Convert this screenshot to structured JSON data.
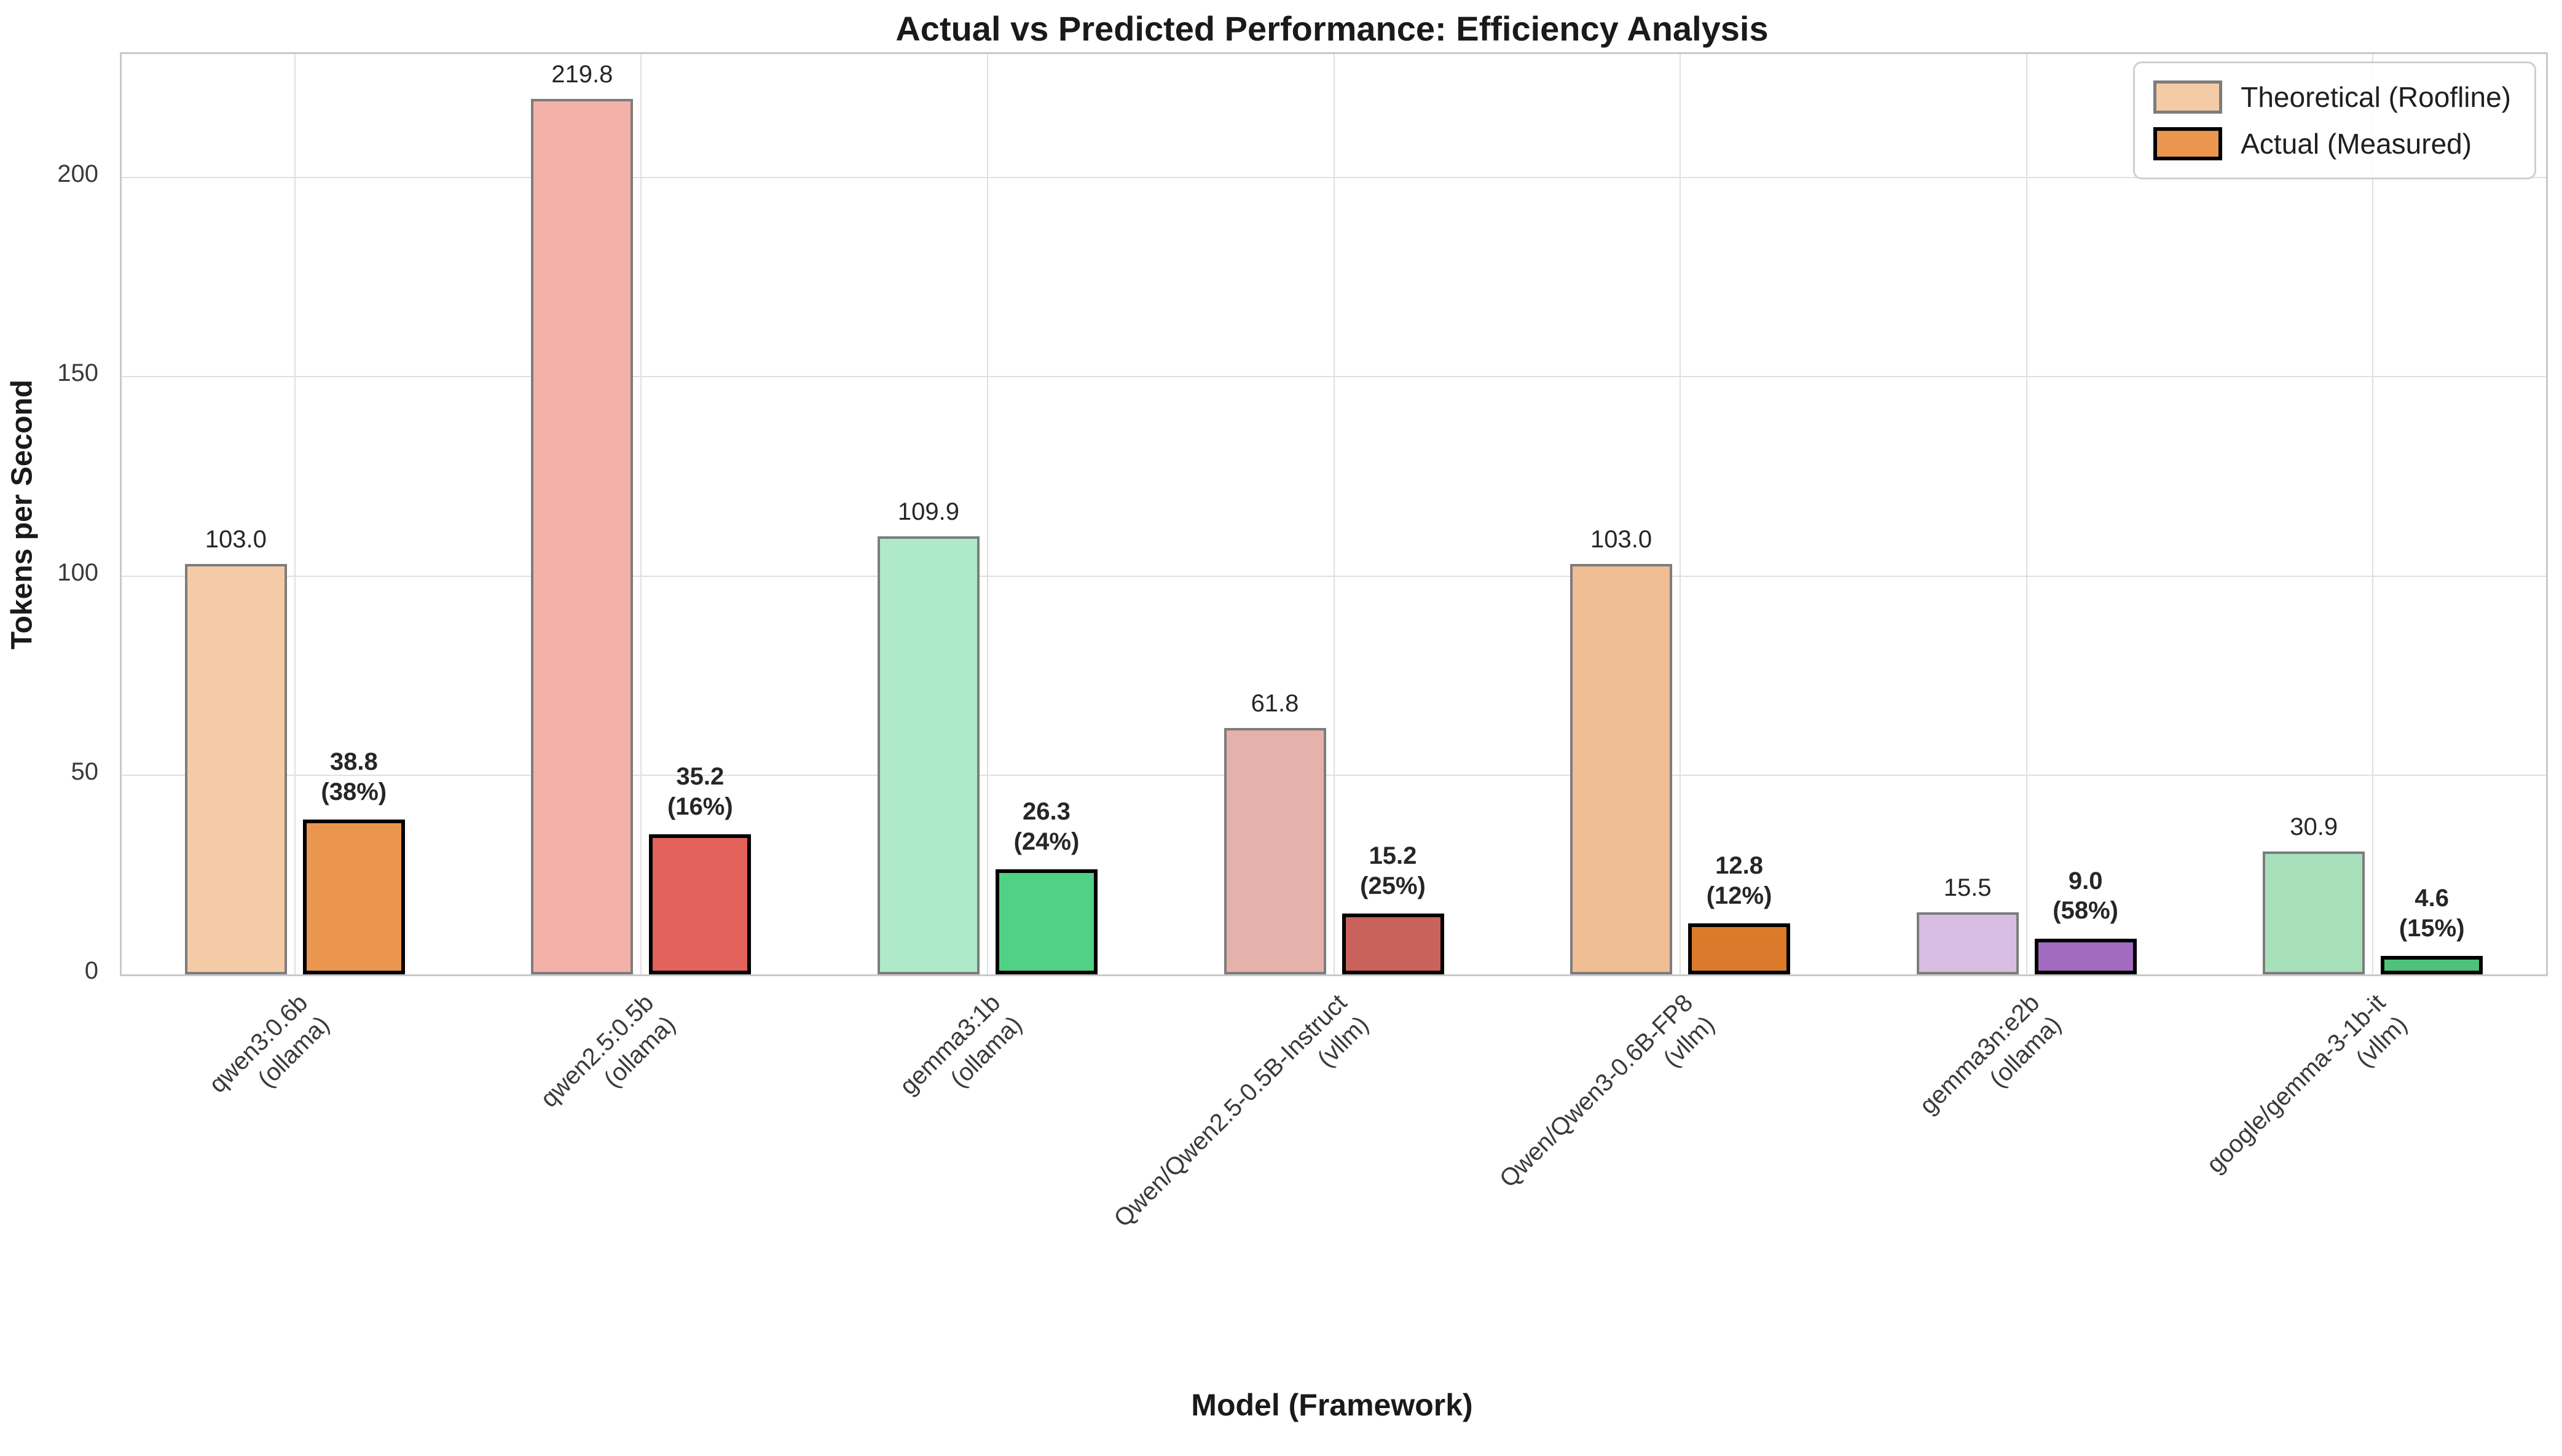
{
  "chart_data": {
    "type": "bar",
    "title": "Actual vs Predicted Performance: Efficiency Analysis",
    "xlabel": "Model (Framework)",
    "ylabel": "Tokens per Second",
    "ylim": [
      0,
      231
    ],
    "yticks": [
      0,
      50,
      100,
      150,
      200
    ],
    "grid": true,
    "legend_position": "upper right",
    "categories": [
      {
        "model": "qwen3:0.6b",
        "framework": "ollama"
      },
      {
        "model": "qwen2.5:0.5b",
        "framework": "ollama"
      },
      {
        "model": "gemma3:1b",
        "framework": "ollama"
      },
      {
        "model": "Qwen/Qwen2.5-0.5B-Instruct",
        "framework": "vllm"
      },
      {
        "model": "Qwen/Qwen3-0.6B-FP8",
        "framework": "vllm"
      },
      {
        "model": "gemma3n:e2b",
        "framework": "ollama"
      },
      {
        "model": "google/gemma-3-1b-it",
        "framework": "vllm"
      }
    ],
    "series": [
      {
        "name": "Theoretical (Roofline)",
        "values": [
          103.0,
          219.8,
          109.9,
          61.8,
          103.0,
          15.5,
          30.9
        ],
        "value_labels": [
          "103.0",
          "219.8",
          "109.9",
          "61.8",
          "103.0",
          "15.5",
          "30.9"
        ],
        "fills": [
          "#F5CBA7",
          "#F4B1A9",
          "#AFEAC8",
          "#E5B1AB",
          "#F0BE93",
          "#D7BDE2",
          "#A8E0BC"
        ],
        "edge_color": "#7C7C7C"
      },
      {
        "name": "Actual (Measured)",
        "values": [
          38.8,
          35.2,
          26.3,
          15.2,
          12.8,
          9.0,
          4.6
        ],
        "value_labels": [
          "38.8",
          "35.2",
          "26.3",
          "15.2",
          "12.8",
          "9.0",
          "4.6"
        ],
        "efficiency_labels": [
          "(38%)",
          "(16%)",
          "(24%)",
          "(25%)",
          "(12%)",
          "(58%)",
          "(15%)"
        ],
        "fills": [
          "#EA964E",
          "#E2615A",
          "#50D185",
          "#C9625A",
          "#DB7A2A",
          "#A26BBF",
          "#4EC27B"
        ],
        "edge_color": "#000000"
      }
    ]
  }
}
